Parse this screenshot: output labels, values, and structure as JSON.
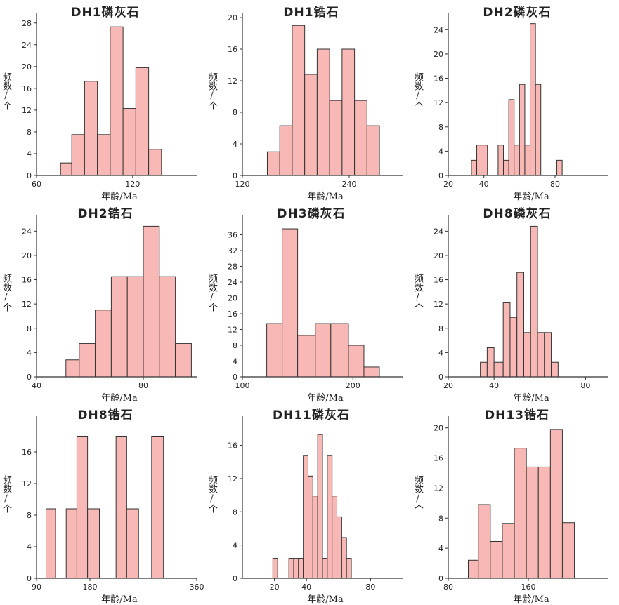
{
  "chart_data": [
    {
      "type": "bar",
      "title": "DH1磷灰石",
      "xlabel": "年龄/Ma",
      "ylabel": "频数/个",
      "xlim": [
        60,
        160
      ],
      "ylim": [
        0,
        29
      ],
      "xticks": [
        60,
        120
      ],
      "yticks": [
        0,
        4,
        8,
        12,
        16,
        20,
        24,
        28
      ],
      "bins": [
        [
          75,
          82
        ],
        [
          82,
          90
        ],
        [
          90,
          98
        ],
        [
          98,
          106
        ],
        [
          106,
          114
        ],
        [
          114,
          122
        ],
        [
          122,
          130
        ],
        [
          130,
          138
        ]
      ],
      "values": [
        2.3,
        7.5,
        17.3,
        7.5,
        27.3,
        12.3,
        19.8,
        4.8
      ]
    },
    {
      "type": "bar",
      "title": "DH1锆石",
      "xlabel": "年龄/Ma",
      "ylabel": "频数/个",
      "xlim": [
        120,
        300
      ],
      "ylim": [
        0,
        20
      ],
      "xticks": [
        120,
        240
      ],
      "yticks": [
        0,
        4,
        8,
        12,
        16,
        20
      ],
      "bins": [
        [
          148,
          162
        ],
        [
          162,
          176
        ],
        [
          176,
          190
        ],
        [
          190,
          204
        ],
        [
          204,
          218
        ],
        [
          218,
          232
        ],
        [
          232,
          246
        ],
        [
          246,
          260
        ],
        [
          260,
          274
        ]
      ],
      "values": [
        3,
        6.3,
        19,
        12.8,
        16,
        9.5,
        16,
        9.5,
        6.3
      ]
    },
    {
      "type": "bar",
      "title": "DH2磷灰石",
      "xlabel": "年龄/Ma",
      "ylabel": "频数/个",
      "xlim": [
        20,
        110
      ],
      "ylim": [
        0,
        26
      ],
      "xticks": [
        20,
        40,
        80
      ],
      "yticks": [
        0,
        4,
        8,
        12,
        16,
        20,
        24
      ],
      "bins": [
        [
          33,
          36
        ],
        [
          36,
          42
        ],
        [
          48,
          51
        ],
        [
          51,
          54
        ],
        [
          54,
          57
        ],
        [
          57,
          60
        ],
        [
          60,
          63
        ],
        [
          63,
          66
        ],
        [
          66,
          69
        ],
        [
          69,
          72
        ],
        [
          72,
          75
        ],
        [
          75,
          78
        ],
        [
          81,
          84
        ]
      ],
      "values": [
        2.5,
        5,
        5,
        2.5,
        12.5,
        5,
        15,
        5,
        25,
        15,
        0,
        0,
        2.5
      ]
    },
    {
      "type": "bar",
      "title": "DH2锆石",
      "xlabel": "年龄/Ma",
      "ylabel": "频数/个",
      "xlim": [
        40,
        100
      ],
      "ylim": [
        0,
        26
      ],
      "xticks": [
        40,
        80
      ],
      "yticks": [
        0,
        4,
        8,
        12,
        16,
        20,
        24
      ],
      "bins": [
        [
          51,
          56
        ],
        [
          56,
          62
        ],
        [
          62,
          68
        ],
        [
          68,
          74
        ],
        [
          74,
          80
        ],
        [
          80,
          86
        ],
        [
          86,
          92
        ],
        [
          92,
          98
        ]
      ],
      "values": [
        2.8,
        5.5,
        11,
        16.5,
        16.5,
        24.8,
        16.5,
        5.5
      ]
    },
    {
      "type": "bar",
      "title": "DH3磷灰石",
      "xlabel": "年龄/Ma",
      "ylabel": "频数/个",
      "xlim": [
        100,
        245
      ],
      "ylim": [
        0,
        40
      ],
      "xticks": [
        100,
        200
      ],
      "yticks": [
        0,
        4,
        8,
        12,
        16,
        20,
        24,
        28,
        32,
        36
      ],
      "bins": [
        [
          122,
          136
        ],
        [
          136,
          150
        ],
        [
          150,
          166
        ],
        [
          166,
          180
        ],
        [
          180,
          196
        ],
        [
          196,
          210
        ],
        [
          210,
          224
        ]
      ],
      "values": [
        13.5,
        37.5,
        10.5,
        13.5,
        13.5,
        8,
        2.5
      ]
    },
    {
      "type": "bar",
      "title": "DH8磷灰石",
      "xlabel": "年龄/Ma",
      "ylabel": "频数/个",
      "xlim": [
        20,
        90
      ],
      "ylim": [
        0,
        26
      ],
      "xticks": [
        20,
        40,
        80
      ],
      "yticks": [
        0,
        4,
        8,
        12,
        16,
        20,
        24
      ],
      "bins": [
        [
          34,
          37
        ],
        [
          37,
          40
        ],
        [
          40,
          44
        ],
        [
          44,
          47
        ],
        [
          47,
          50
        ],
        [
          50,
          53
        ],
        [
          53,
          56
        ],
        [
          56,
          59
        ],
        [
          59,
          62
        ],
        [
          62,
          65
        ],
        [
          65,
          68
        ],
        [
          68,
          71
        ]
      ],
      "values": [
        2.4,
        4.8,
        2.4,
        12.3,
        9.8,
        17.2,
        7.3,
        24.8,
        7.3,
        7.3,
        2.4,
        0
      ]
    },
    {
      "type": "bar",
      "title": "DH8锆石",
      "xlabel": "年龄/Ma",
      "ylabel": "频数/个",
      "xlim": [
        90,
        360
      ],
      "ylim": [
        0,
        20
      ],
      "xticks": [
        90,
        180,
        360
      ],
      "yticks": [
        0,
        4,
        8,
        12,
        16
      ],
      "bins": [
        [
          106,
          122
        ],
        [
          140,
          158
        ],
        [
          158,
          176
        ],
        [
          176,
          196
        ],
        [
          224,
          242
        ],
        [
          242,
          262
        ],
        [
          284,
          304
        ]
      ],
      "values": [
        8.8,
        8.8,
        18,
        8.8,
        18,
        8.8,
        18
      ]
    },
    {
      "type": "bar",
      "title": "DH11磷灰石",
      "xlabel": "年龄/Ma",
      "ylabel": "频数/个",
      "xlim": [
        0,
        100
      ],
      "ylim": [
        0,
        19
      ],
      "xticks": [
        20,
        40,
        80
      ],
      "yticks": [
        0,
        4,
        8,
        12,
        16
      ],
      "bins": [
        [
          19,
          22
        ],
        [
          29,
          32
        ],
        [
          32,
          35
        ],
        [
          35,
          38
        ],
        [
          38,
          41
        ],
        [
          41,
          44
        ],
        [
          44,
          47
        ],
        [
          47,
          50
        ],
        [
          50,
          53
        ],
        [
          53,
          56
        ],
        [
          56,
          59
        ],
        [
          59,
          62
        ],
        [
          62,
          65
        ],
        [
          65,
          68
        ]
      ],
      "values": [
        2.4,
        2.4,
        2.4,
        2.4,
        14.8,
        12.3,
        9.9,
        17.3,
        2.4,
        14.8,
        9.9,
        7.4,
        4.9,
        2.4
      ]
    },
    {
      "type": "bar",
      "title": "DH13锆石",
      "xlabel": "年龄/Ma",
      "ylabel": "频数/个",
      "xlim": [
        80,
        240
      ],
      "ylim": [
        0,
        21
      ],
      "xticks": [
        80,
        160
      ],
      "yticks": [
        0,
        4,
        8,
        12,
        16,
        20
      ],
      "bins": [
        [
          100,
          110
        ],
        [
          110,
          122
        ],
        [
          122,
          134
        ],
        [
          134,
          146
        ],
        [
          146,
          158
        ],
        [
          158,
          170
        ],
        [
          170,
          182
        ],
        [
          182,
          194
        ],
        [
          194,
          206
        ]
      ],
      "values": [
        2.4,
        9.8,
        4.9,
        7.3,
        17.3,
        14.8,
        14.8,
        19.8,
        7.4
      ]
    }
  ]
}
